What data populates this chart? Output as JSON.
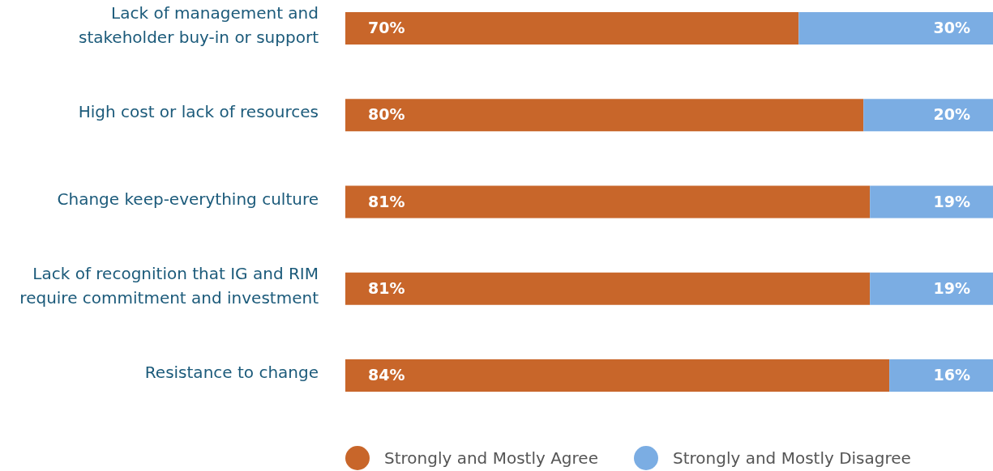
{
  "chart_data": {
    "type": "bar",
    "orientation": "horizontal",
    "stacked": true,
    "xlim": [
      0,
      100
    ],
    "tick_labels": "y",
    "legend": "bottom",
    "grid": false,
    "categories": [
      "Lack of management and stakeholder buy-in or support",
      "High cost or lack of resources",
      "Change keep-everything culture",
      "Lack of recognition that IG and RIM require commitment and investment",
      "Resistance to change"
    ],
    "series": [
      {
        "name": "Strongly and Mostly Agree",
        "color": "#c8662a",
        "values": [
          70,
          80,
          81,
          81,
          84
        ],
        "value_labels": [
          "70%",
          "80%",
          "81%",
          "81%",
          "84%"
        ]
      },
      {
        "name": "Strongly and Mostly Disagree",
        "color": "#7badE3",
        "values": [
          30,
          20,
          19,
          19,
          16
        ],
        "value_labels": [
          "30%",
          "20%",
          "19%",
          "19%",
          "16%"
        ]
      }
    ]
  }
}
